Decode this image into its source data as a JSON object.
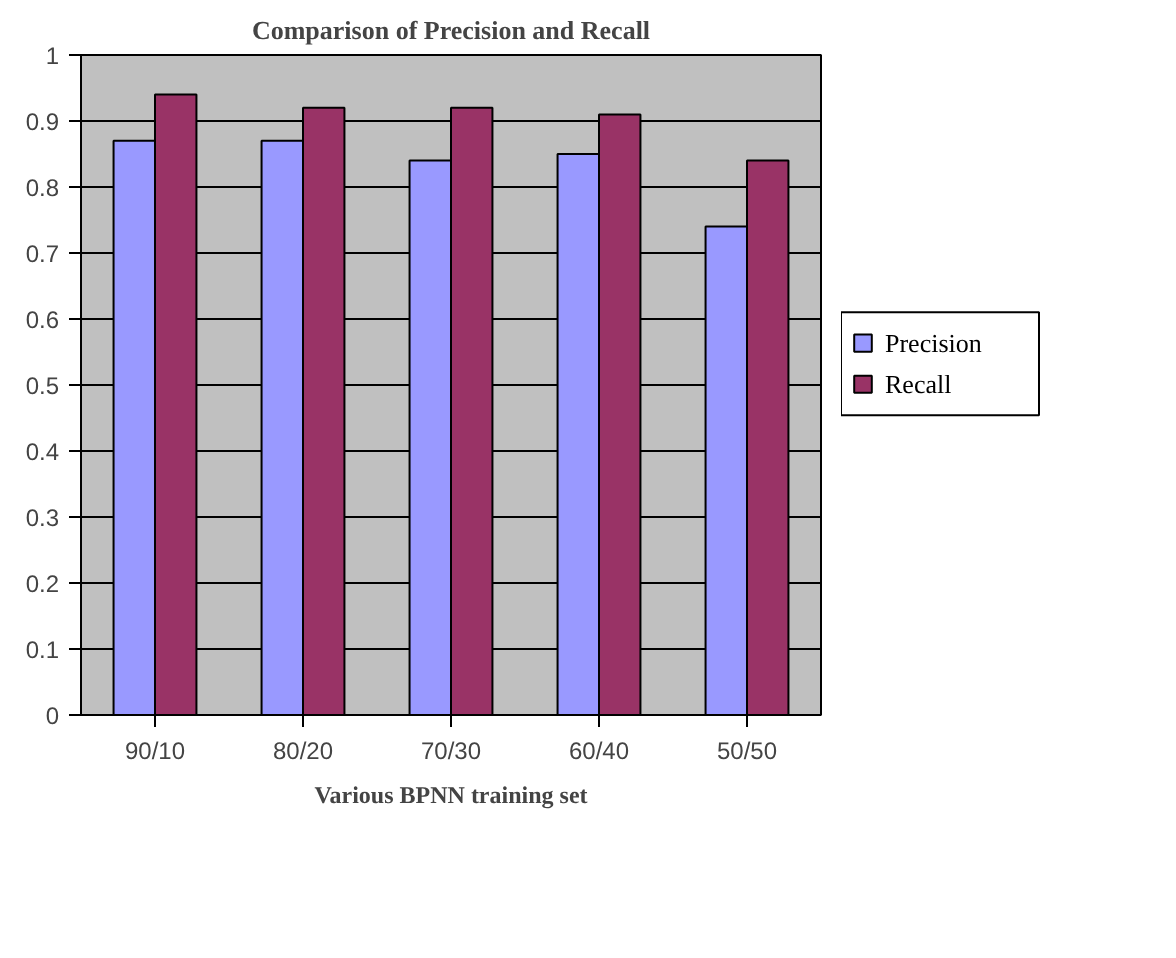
{
  "chart_data": {
    "type": "bar",
    "title": "Comparison of Precision and Recall",
    "xlabel": "Various BPNN training set",
    "categories": [
      "90/10",
      "80/20",
      "70/30",
      "60/40",
      "50/50"
    ],
    "series": [
      {
        "name": "Precision",
        "color": "#9999ff",
        "values": [
          0.87,
          0.87,
          0.84,
          0.85,
          0.74
        ]
      },
      {
        "name": "Recall",
        "color": "#993366",
        "values": [
          0.94,
          0.92,
          0.92,
          0.91,
          0.84
        ]
      }
    ],
    "ylim": [
      0,
      1
    ],
    "yticks": [
      0,
      0.1,
      0.2,
      0.3,
      0.4,
      0.5,
      0.6,
      0.7,
      0.8,
      0.9,
      1
    ],
    "grid": "y",
    "legend": "right"
  }
}
